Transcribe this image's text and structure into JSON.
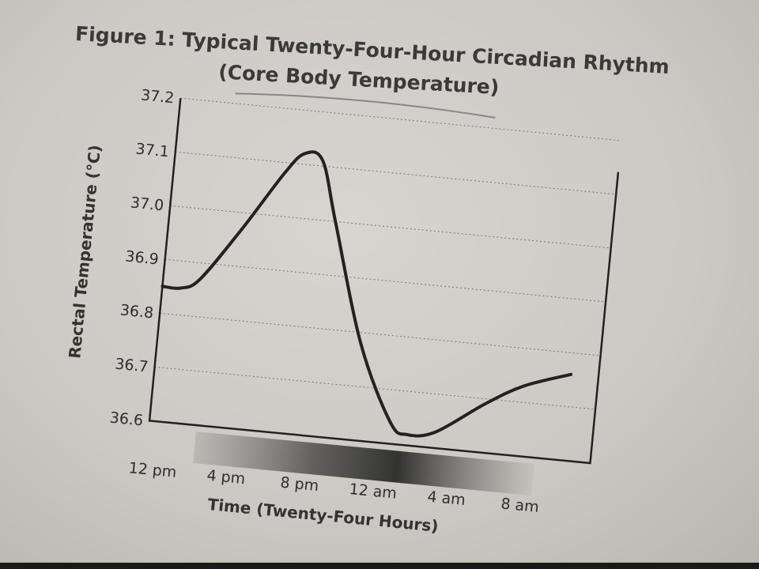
{
  "chart_data": {
    "type": "line",
    "title": "Figure 1: Typical Twenty-Four-Hour Circadian Rhythm",
    "subtitle": "(Core Body Temperature)",
    "xlabel": "Time (Twenty-Four Hours)",
    "ylabel": "Rectal Temperature (°C)",
    "x_tick_labels": [
      "12 pm",
      "4 pm",
      "8 pm",
      "12 am",
      "4 am",
      "8 am"
    ],
    "x_tick_hours": [
      0,
      4,
      8,
      12,
      16,
      20
    ],
    "xlim": [
      0,
      24
    ],
    "y_tick_labels": [
      "36.6",
      "36.7",
      "36.8",
      "36.9",
      "37.0",
      "37.1",
      "37.2"
    ],
    "ylim": [
      36.6,
      37.2
    ],
    "grid": "horizontal dotted",
    "series": [
      {
        "name": "Core Body Temperature",
        "x_hours_from_noon": [
          0,
          1,
          2,
          4,
          6,
          7,
          8,
          9,
          11,
          13,
          14,
          15.5,
          18,
          20,
          22.5
        ],
        "values": [
          36.85,
          36.85,
          36.87,
          36.97,
          37.08,
          37.12,
          37.11,
          37.0,
          36.78,
          36.64,
          36.62,
          36.63,
          36.69,
          36.73,
          36.76
        ]
      }
    ],
    "colors": {
      "line": "#222222",
      "paper": "#d3d0cc"
    }
  }
}
